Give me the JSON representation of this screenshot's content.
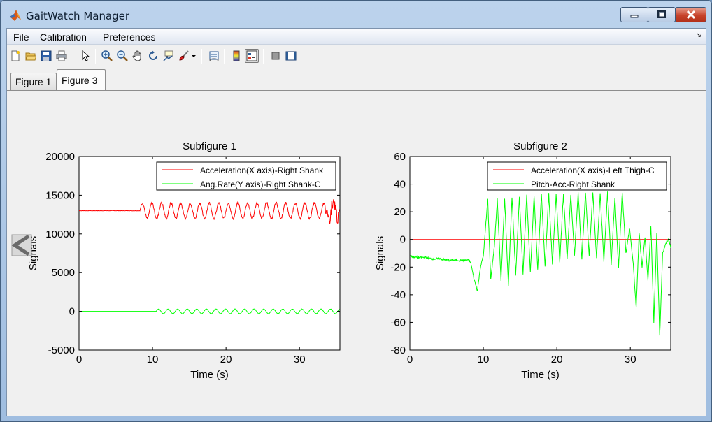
{
  "window": {
    "title": "GaitWatch Manager",
    "icon": "matlab-icon",
    "controls": [
      "minimize-icon",
      "maximize-icon",
      "close-icon"
    ]
  },
  "menu": {
    "items": [
      "File",
      "Calibration",
      "Preferences"
    ],
    "overflow_icon": "dock-arrow-icon"
  },
  "toolbar": {
    "buttons": [
      "new-file-icon",
      "open-folder-icon",
      "save-icon",
      "print-icon",
      "pointer-icon",
      "zoom-in-icon",
      "zoom-out-icon",
      "pan-hand-icon",
      "rotate-3d-icon",
      "data-cursor-icon",
      "brush-icon",
      "link-plot-icon",
      "colorbar-icon",
      "legend-icon",
      "hide-plot-tools-icon",
      "show-plot-tools-icon"
    ],
    "pressed": "legend-icon"
  },
  "tabs": [
    {
      "label": "Figure 1",
      "selected": false
    },
    {
      "label": "Figure 3",
      "selected": true
    }
  ],
  "side_icon": "chevron-left-icon",
  "colors": {
    "red": "#ff0000",
    "green": "#00ff00"
  },
  "chart_data": [
    {
      "type": "line",
      "title": "Subfigure 1",
      "xlabel": "Time (s)",
      "ylabel": "Signals",
      "xlim": [
        0,
        35.5
      ],
      "ylim": [
        -5000,
        20000
      ],
      "xticks": [
        0,
        10,
        20,
        30
      ],
      "yticks": [
        -5000,
        0,
        5000,
        10000,
        15000,
        20000
      ],
      "legend_position": "top-right",
      "series": [
        {
          "name": "Acceleration(X axis)-Right Shank",
          "color": "#ff0000",
          "baseline": 13000,
          "flat_until": 8.3,
          "amplitude": 1000,
          "period": 1.3,
          "noise": 150,
          "x": [
            0,
            8.3,
            9.0,
            9.7,
            10.3,
            11.0,
            11.6,
            12.3,
            12.9,
            13.6,
            14.2,
            14.9,
            15.5,
            16.2,
            16.8,
            17.5,
            18.1,
            18.8,
            19.4,
            20.1,
            20.7,
            21.4,
            22.0,
            22.7,
            23.3,
            24.0,
            24.6,
            25.3,
            25.9,
            26.6,
            27.2,
            27.9,
            28.5,
            29.2,
            29.8,
            30.5,
            31.1,
            31.8,
            32.4,
            33.1,
            33.7,
            34.2,
            34.6,
            35.0,
            35.5
          ],
          "y": [
            13000,
            13000,
            13800,
            12300,
            13700,
            12100,
            13800,
            12000,
            13900,
            12000,
            13800,
            12100,
            13900,
            12000,
            13800,
            12000,
            13900,
            12200,
            13800,
            12000,
            13700,
            12100,
            13900,
            12000,
            13800,
            12100,
            13800,
            12000,
            13900,
            12100,
            13800,
            12000,
            13900,
            12100,
            13800,
            12300,
            13600,
            12400,
            13600,
            12300,
            14800,
            11200,
            15100,
            12200,
            12600
          ]
        },
        {
          "name": "Ang.Rate(Y axis)-Right Shank-C",
          "color": "#00ff00",
          "baseline": 0,
          "flat_until": 10.5,
          "amplitude": 300,
          "period": 1.3,
          "noise": 20,
          "x": [
            0,
            10.5,
            11.2,
            11.8,
            12.5,
            13.1,
            13.8,
            14.4,
            15.1,
            15.7,
            16.4,
            17.0,
            17.7,
            18.3,
            19.0,
            19.6,
            20.3,
            20.9,
            21.6,
            22.2,
            22.9,
            23.5,
            24.2,
            24.8,
            25.5,
            26.1,
            26.8,
            27.4,
            28.1,
            28.7,
            29.5,
            35.5
          ],
          "y": [
            0,
            0,
            300,
            -250,
            300,
            -250,
            300,
            -250,
            300,
            -250,
            300,
            -250,
            300,
            -250,
            300,
            -250,
            300,
            -250,
            300,
            -250,
            300,
            -250,
            300,
            -250,
            300,
            -250,
            300,
            -250,
            300,
            -200,
            0,
            0
          ]
        }
      ]
    },
    {
      "type": "line",
      "title": "Subfigure 2",
      "xlabel": "Time (s)",
      "ylabel": "Signals",
      "xlim": [
        0,
        35.5
      ],
      "ylim": [
        -80,
        60
      ],
      "xticks": [
        0,
        10,
        20,
        30
      ],
      "yticks": [
        -80,
        -60,
        -40,
        -20,
        0,
        20,
        40,
        60
      ],
      "legend_position": "top-right",
      "series": [
        {
          "name": "Acceleration(X axis)-Left Thigh-C",
          "color": "#ff0000",
          "x": [
            0,
            10,
            20,
            30,
            35.5
          ],
          "y": [
            0,
            0,
            0,
            0,
            0
          ]
        },
        {
          "name": "Pitch-Acc-Right Shank",
          "color": "#00ff00",
          "x": [
            0,
            1,
            2,
            3,
            4,
            5,
            6,
            7,
            8.0,
            8.3,
            8.7,
            9.2,
            9.6,
            10.0,
            10.6,
            11.0,
            11.5,
            11.9,
            12.4,
            12.9,
            13.4,
            13.9,
            14.4,
            14.9,
            15.4,
            15.9,
            16.4,
            16.9,
            17.4,
            17.9,
            18.4,
            18.9,
            19.4,
            19.9,
            20.4,
            20.9,
            21.4,
            21.9,
            22.4,
            22.9,
            23.4,
            23.9,
            24.4,
            24.9,
            25.4,
            25.9,
            26.4,
            26.9,
            27.4,
            27.9,
            28.4,
            28.9,
            29.4,
            29.9,
            30.4,
            30.8,
            31.2,
            31.6,
            32.0,
            32.4,
            32.8,
            33.2,
            33.6,
            34.0,
            34.4,
            34.8,
            35.2,
            35.5
          ],
          "y": [
            -12,
            -13,
            -13,
            -14,
            -14,
            -15,
            -15,
            -15,
            -15,
            -17,
            -28,
            -37,
            -20,
            -12,
            29,
            -29,
            -5,
            29,
            -30,
            30,
            -33,
            31,
            -26,
            31,
            -25,
            32,
            -24,
            32,
            -22,
            33,
            -20,
            33,
            -18,
            33,
            -16,
            33,
            -14,
            33,
            -12,
            34,
            -14,
            34,
            -12,
            34,
            -14,
            33,
            -16,
            34,
            -18,
            30,
            -20,
            34,
            -10,
            8,
            -18,
            -50,
            5,
            -20,
            2,
            -30,
            10,
            -60,
            5,
            -70,
            -10,
            -3,
            0,
            -6
          ]
        }
      ]
    }
  ]
}
